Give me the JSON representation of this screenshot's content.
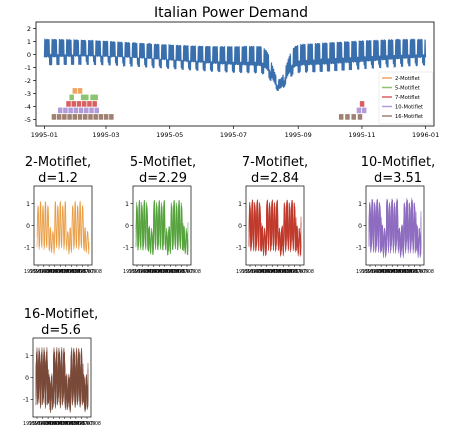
{
  "chart_data": [
    {
      "type": "line",
      "title": "Italian Power Demand",
      "xlabel": "",
      "ylabel": "",
      "ylim": [
        -5.5,
        2.5
      ],
      "y_ticks": [
        2,
        1,
        0,
        -1,
        -2,
        -3,
        -4,
        -5
      ],
      "x_ticks": [
        "1995-01",
        "1995-03",
        "1995-05",
        "1995-07",
        "1995-09",
        "1995-11",
        "1996-01"
      ],
      "x_range": [
        "1995-01-01",
        "1996-01-01"
      ],
      "grid": false,
      "series_color": "#3a6fae",
      "legend_position": "lower-right",
      "legend": [
        {
          "name": "2-Motiflet",
          "color": "#f0a460"
        },
        {
          "name": "5-Motiflet",
          "color": "#8cc472"
        },
        {
          "name": "7-Motiflet",
          "color": "#d96060"
        },
        {
          "name": "10-Motiflet",
          "color": "#b19cd9"
        },
        {
          "name": "16-Motiflet",
          "color": "#a08070"
        }
      ],
      "motiflet_occurrences": [
        {
          "level": -2.8,
          "color": "#f0a460",
          "starts": [
            "1995-01-28",
            "1995-02-02"
          ]
        },
        {
          "level": -3.3,
          "color": "#8cc472",
          "starts": [
            "1995-01-25",
            "1995-02-05",
            "1995-02-08",
            "1995-02-14",
            "1995-02-17"
          ]
        },
        {
          "level": -3.8,
          "color": "#d96060",
          "starts": [
            "1995-01-22",
            "1995-01-27",
            "1995-02-01",
            "1995-02-06",
            "1995-02-11",
            "1995-02-16",
            "1995-10-30"
          ]
        },
        {
          "level": -4.3,
          "color": "#b19cd9",
          "starts": [
            "1995-01-14",
            "1995-01-19",
            "1995-01-24",
            "1995-01-29",
            "1995-02-03",
            "1995-02-08",
            "1995-02-13",
            "1995-02-18",
            "1995-10-27",
            "1995-11-01"
          ]
        },
        {
          "level": -4.8,
          "color": "#a08070",
          "starts": [
            "1995-01-08",
            "1995-01-13",
            "1995-01-18",
            "1995-01-23",
            "1995-01-28",
            "1995-02-02",
            "1995-02-07",
            "1995-02-12",
            "1995-02-17",
            "1995-02-22",
            "1995-02-27",
            "1995-03-04",
            "1995-10-10",
            "1995-10-16",
            "1995-10-22",
            "1995-10-28"
          ]
        }
      ]
    },
    {
      "type": "line",
      "title": "2-Motiflet,\nd=1.2",
      "color": "#e8963a",
      "ylim": [
        -1.8,
        1.8
      ],
      "y_ticks": [
        1,
        0,
        -1
      ],
      "x_tick_label": "1995-07-08",
      "series_count": 2,
      "period_days": 7,
      "span_days": 21
    },
    {
      "type": "line",
      "title": "5-Motiflet,\nd=2.29",
      "color": "#55a23c",
      "ylim": [
        -1.8,
        1.8
      ],
      "y_ticks": [
        1,
        0,
        -1
      ],
      "x_tick_label": "1995-07-08",
      "series_count": 5,
      "period_days": 7,
      "span_days": 21
    },
    {
      "type": "line",
      "title": "7-Motiflet,\nd=2.84",
      "color": "#c0392b",
      "ylim": [
        -1.8,
        1.8
      ],
      "y_ticks": [
        1,
        0,
        -1
      ],
      "x_tick_label": "1995-07-08",
      "series_count": 7,
      "period_days": 7,
      "span_days": 21
    },
    {
      "type": "line",
      "title": "10-Motiflet,\nd=3.51",
      "color": "#8e6cc0",
      "ylim": [
        -1.8,
        1.8
      ],
      "y_ticks": [
        1,
        0,
        -1
      ],
      "x_tick_label": "1995-07-08",
      "series_count": 10,
      "period_days": 7,
      "span_days": 21
    },
    {
      "type": "line",
      "title": "16-Motiflet,\nd=5.6",
      "color": "#7a4a3a",
      "ylim": [
        -1.8,
        1.8
      ],
      "y_ticks": [
        1,
        0,
        -1
      ],
      "x_tick_label": "1995-07-08",
      "series_count": 16,
      "period_days": 7,
      "span_days": 21
    }
  ]
}
